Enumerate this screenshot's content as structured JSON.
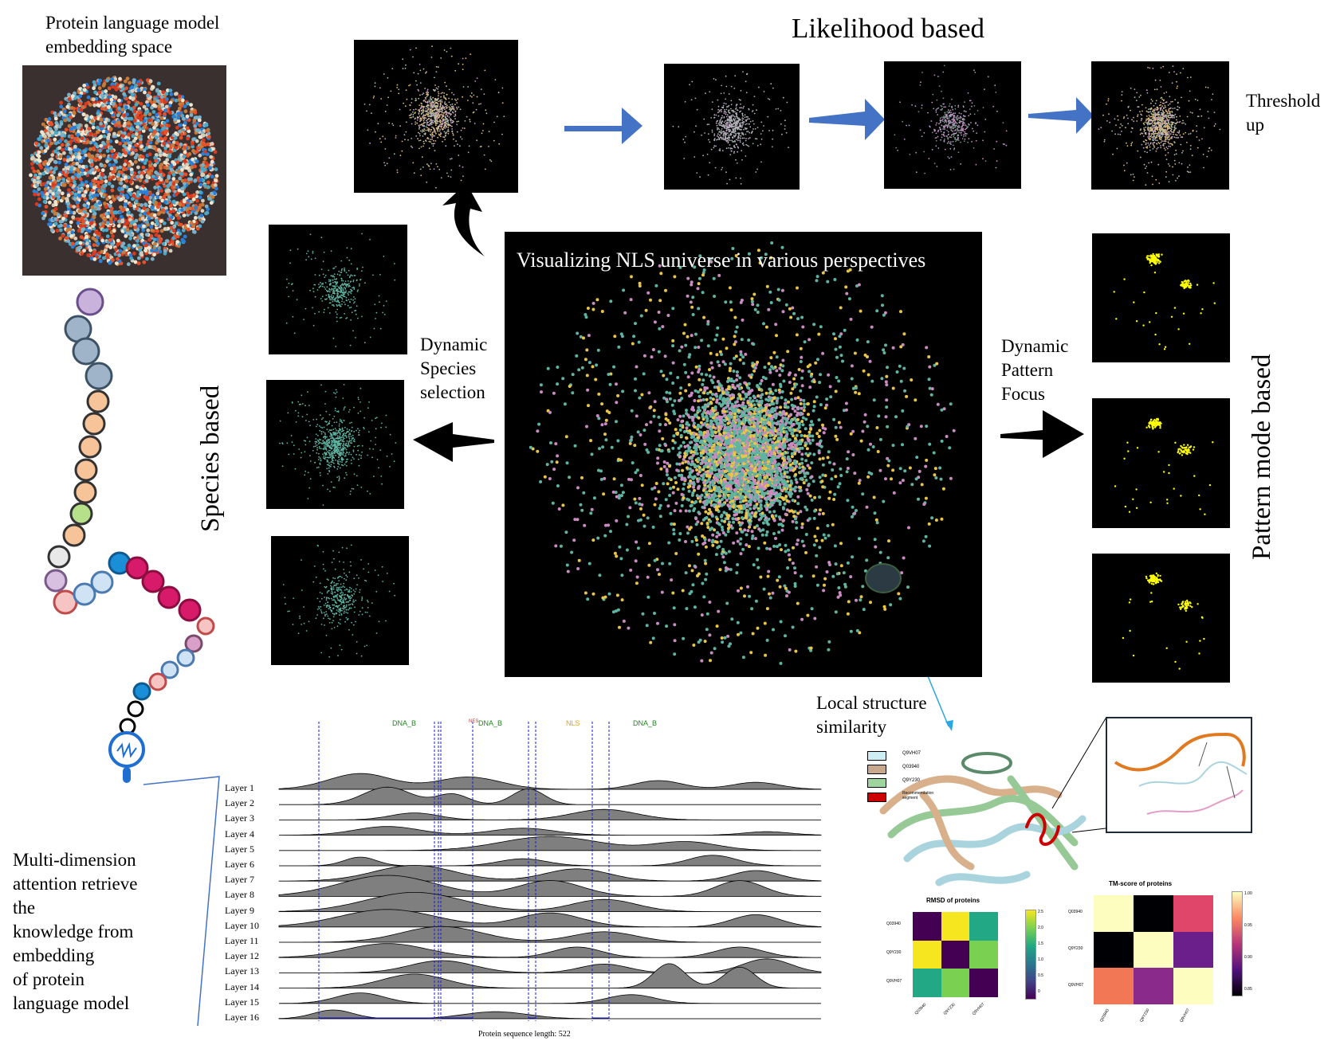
{
  "embedding_title": "Protein language model\nembedding space",
  "likelihood_title": "Likelihood based",
  "threshold_label": "Threshold\nup",
  "center_title": "Visualizing NLS universe in various perspectives",
  "species_selection": "Dynamic\nSpecies\nselection",
  "species_based": "Species based",
  "pattern_focus": "Dynamic\nPattern\nFocus",
  "pattern_based": "Pattern mode based",
  "local_structure": "Local structure\nsimilarity",
  "attention_text": "Multi-dimension\nattention retrieve\nthe\nknowledge from\nembedding\nof protein\nlanguage model",
  "ridge": {
    "layers": [
      "Layer 1",
      "Layer 2",
      "Layer 3",
      "Layer 4",
      "Layer 5",
      "Layer 6",
      "Layer 7",
      "Layer 8",
      "Layer 9",
      "Layer 10",
      "Layer 11",
      "Layer 12",
      "Layer 13",
      "Layer 14",
      "Layer 15",
      "Layer 16"
    ],
    "domain_labels": [
      "DNA_B",
      "NES",
      "DNA_B",
      "NLS",
      "DNA_B"
    ],
    "seq_length_label": "Protein sequence length: 522"
  },
  "structure_legend": [
    "Q9VH07",
    "Q03940",
    "Q9Y230",
    "Recommendation\nsegment"
  ],
  "rmsd": {
    "title": "RMSD of proteins",
    "rows": [
      "Q03940",
      "Q9Y230",
      "Q9VH07"
    ],
    "cols": [
      "Q03940",
      "Q9Y230",
      "Q9VH07"
    ],
    "colorbar": [
      "2.5",
      "2.0",
      "1.5",
      "1.0",
      "0.5",
      "0"
    ]
  },
  "tmscore": {
    "title": "TM-score of proteins",
    "rows": [
      "Q03940",
      "Q9Y230",
      "Q9VH07"
    ],
    "cols": [
      "Q03940",
      "Q9Y230",
      "Q9VH07"
    ],
    "colorbar": [
      "1.00",
      "0.95",
      "0.90",
      "0.85"
    ]
  },
  "colors": {
    "arrow_blue": "#4472c4",
    "teal": "#5fb3a1",
    "yellow": "#e8c547",
    "pink": "#c98bc0",
    "pattern_yellow": "#ffff00",
    "leader_blue": "#2aa7e0"
  }
}
